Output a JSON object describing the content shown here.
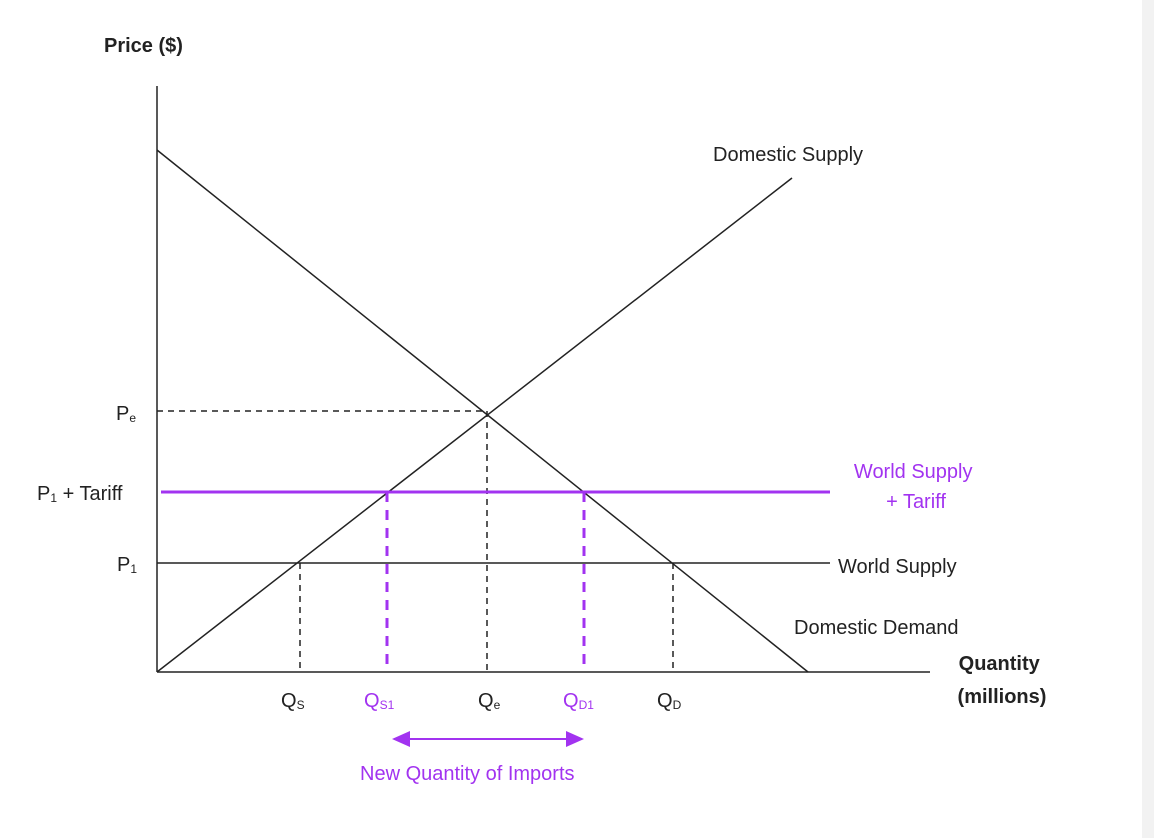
{
  "axes": {
    "y_label": "Price ($)",
    "x_label_line1": "Quantity",
    "x_label_line2": "(millions)"
  },
  "price_labels": {
    "pe": {
      "main": "P",
      "sub": "e"
    },
    "p1_tariff": {
      "main": "P",
      "sub": "1",
      "rest": " + Tariff"
    },
    "p1": {
      "main": "P",
      "sub": "1"
    }
  },
  "quantity_labels": {
    "qs": {
      "main": "Q",
      "sub": "S"
    },
    "qs1": {
      "main": "Q",
      "sub": "S1"
    },
    "qe": {
      "main": "Q",
      "sub": "e"
    },
    "qd1": {
      "main": "Q",
      "sub": "D1"
    },
    "qd": {
      "main": "Q",
      "sub": "D"
    }
  },
  "curves": {
    "domestic_supply": "Domestic Supply",
    "domestic_demand": "Domestic Demand",
    "world_supply": "World Supply",
    "world_supply_tariff_line1": "World Supply",
    "world_supply_tariff_line2": "+ Tariff"
  },
  "annotation": {
    "imports": "New Quantity of Imports"
  },
  "colors": {
    "line": "#222222",
    "tariff": "#a233f0"
  }
}
